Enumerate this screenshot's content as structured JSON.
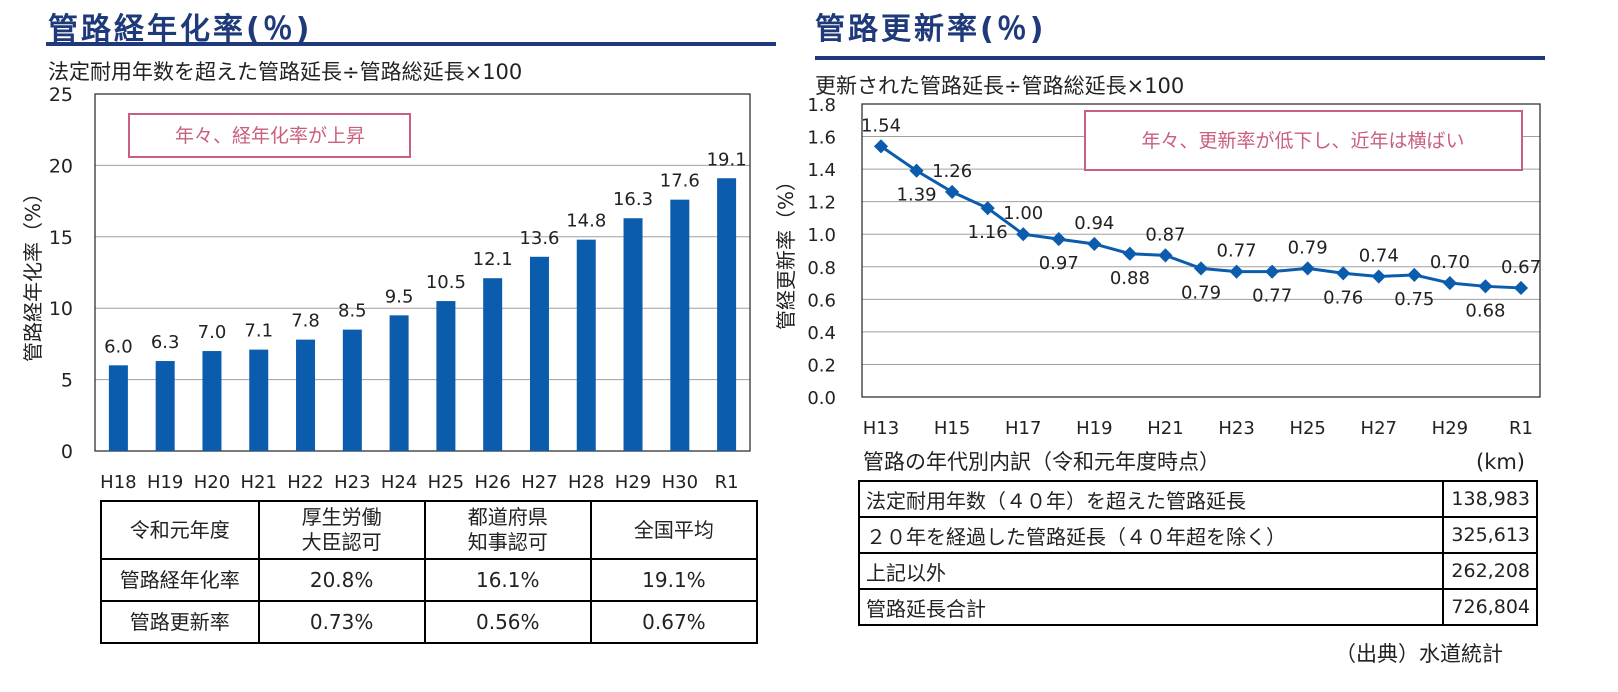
{
  "left": {
    "title": "管路経年化率(％)",
    "formula": "法定耐用年数を超えた管路延長÷管路総延長×100",
    "callout": "年々、経年化率が上昇"
  },
  "right": {
    "title": "管路更新率(％)",
    "formula": "更新された管路延長÷管路総延長×100",
    "callout": "年々、更新率が低下し、近年は横ばい",
    "breakdown_title": "管路の年代別内訳（令和元年度時点）",
    "breakdown_unit": "(km)",
    "breakdown_rows": [
      {
        "label": "法定耐用年数（４０年）を超えた管路延長",
        "value": "138,983"
      },
      {
        "label": "２０年を経過した管路延長（４０年超を除く）",
        "value": "325,613"
      },
      {
        "label": "上記以外",
        "value": "262,208"
      },
      {
        "label": "管路延長合計",
        "value": "726,804"
      }
    ],
    "source": "（出典）水道統計"
  },
  "summary": {
    "headers": [
      "令和元年度",
      "厚生労働\n大臣認可",
      "都道府県\n知事認可",
      "全国平均"
    ],
    "rows": [
      [
        "管路経年化率",
        "20.8%",
        "16.1%",
        "19.1%"
      ],
      [
        "管路更新率",
        "0.73%",
        "0.56%",
        "0.67%"
      ]
    ]
  },
  "colors": {
    "accent": "#1f3a7a",
    "bar": "#0b5cad",
    "line": "#0b5cad",
    "callout_border": "#c8607e",
    "callout_text": "#c8607e"
  },
  "chart_data": [
    {
      "type": "bar",
      "ylabel": "管路経年化率（%）",
      "ylim": [
        0,
        25
      ],
      "yticks": [
        0,
        5,
        10,
        15,
        20,
        25
      ],
      "categories": [
        "H18",
        "H19",
        "H20",
        "H21",
        "H22",
        "H23",
        "H24",
        "H25",
        "H26",
        "H27",
        "H28",
        "H29",
        "H30",
        "R1"
      ],
      "values": [
        6.0,
        6.3,
        7.0,
        7.1,
        7.8,
        8.5,
        9.5,
        10.5,
        12.1,
        13.6,
        14.8,
        16.3,
        17.6,
        19.1
      ],
      "value_labels": [
        "6.0",
        "6.3",
        "7.0",
        "7.1",
        "7.8",
        "8.5",
        "9.5",
        "10.5",
        "12.1",
        "13.6",
        "14.8",
        "16.3",
        "17.6",
        "19.1"
      ],
      "grid": true
    },
    {
      "type": "line",
      "ylabel": "管経更新率（%）",
      "ylim": [
        0,
        1.8
      ],
      "yticks": [
        "0.0",
        "0.2",
        "0.4",
        "0.6",
        "0.8",
        "1.0",
        "1.2",
        "1.4",
        "1.6",
        "1.8"
      ],
      "x": [
        "H13",
        "H14",
        "H15",
        "H16",
        "H17",
        "H18",
        "H19",
        "H20",
        "H21",
        "H22",
        "H23",
        "H24",
        "H25",
        "H26",
        "H27",
        "H28",
        "H29",
        "H30",
        "R1"
      ],
      "x_tick_labels": [
        "H13",
        "",
        "H15",
        "",
        "H17",
        "",
        "H19",
        "",
        "H21",
        "",
        "H23",
        "",
        "H25",
        "",
        "H27",
        "",
        "H29",
        "",
        "R1"
      ],
      "values": [
        1.54,
        1.39,
        1.26,
        1.16,
        1.0,
        0.97,
        0.94,
        0.88,
        0.87,
        0.79,
        0.77,
        0.77,
        0.79,
        0.76,
        0.74,
        0.75,
        0.7,
        0.68,
        0.67
      ],
      "value_labels": [
        "1.54",
        "1.39",
        "1.26",
        "1.16",
        "1.00",
        "0.97",
        "0.94",
        "0.88",
        "0.87",
        "0.79",
        "0.77",
        "0.77",
        "0.79",
        "0.76",
        "0.74",
        "0.75",
        "0.70",
        "0.68",
        "0.67"
      ],
      "label_pos": [
        "above",
        "below",
        "above",
        "below",
        "above",
        "below",
        "above",
        "below",
        "above",
        "below",
        "above",
        "below",
        "above",
        "below",
        "above",
        "below",
        "above",
        "below",
        "above"
      ],
      "grid": true
    }
  ]
}
